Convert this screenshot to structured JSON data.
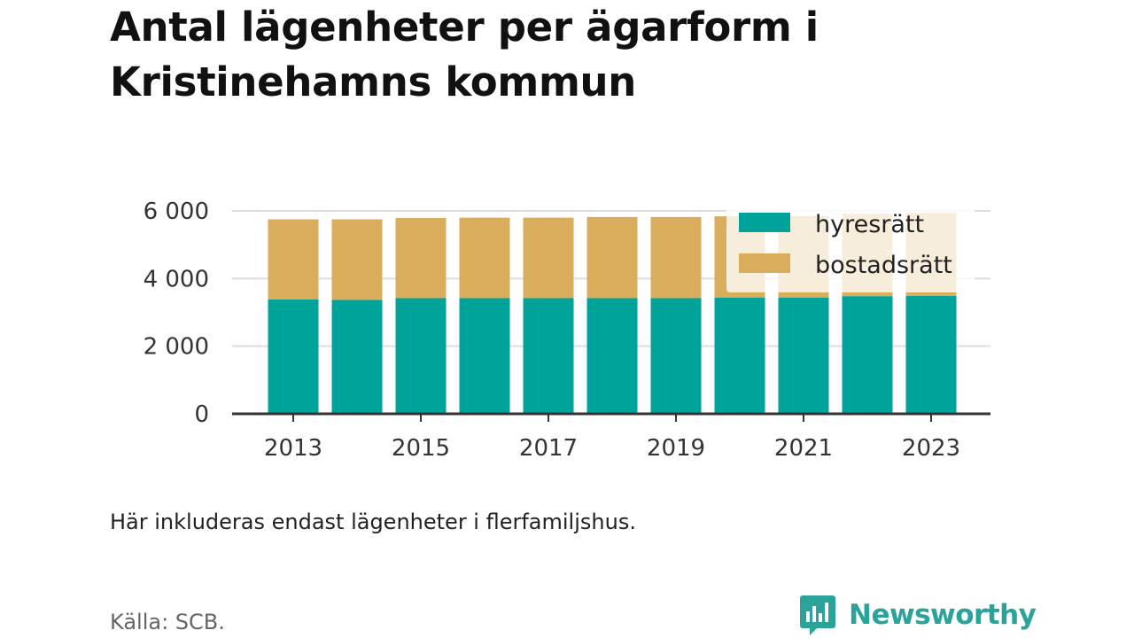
{
  "title": "Antal lägenheter per ägarform i Kristinehamns kommun",
  "note": "Här inkluderas endast lägenheter i flerfamiljshus.",
  "source": "Källa: SCB.",
  "brand": {
    "name": "Newsworthy",
    "icon": "newsworthy-logo-icon",
    "color": "#2aa39a"
  },
  "colors": {
    "hyresratt": "#00a39a",
    "bostadsratt": "#d9ad5b",
    "grid": "#dddddd",
    "axis": "#333333"
  },
  "chart_data": {
    "type": "bar",
    "stacked": true,
    "x": [
      2013,
      2014,
      2015,
      2016,
      2017,
      2018,
      2019,
      2020,
      2021,
      2022,
      2023
    ],
    "x_tick_labels": [
      "2013",
      "2015",
      "2017",
      "2019",
      "2021",
      "2023"
    ],
    "y_ticks": [
      0,
      2000,
      4000,
      6000
    ],
    "y_tick_labels": [
      "0",
      "2 000",
      "4 000",
      "6 000"
    ],
    "ylim": [
      0,
      6000
    ],
    "grid": true,
    "legend_position": "top-right",
    "series": [
      {
        "name": "hyresrätt",
        "color": "#00a39a",
        "values": [
          3380,
          3370,
          3420,
          3420,
          3420,
          3420,
          3420,
          3440,
          3440,
          3480,
          3490
        ]
      },
      {
        "name": "bostadsrätt",
        "color": "#d9ad5b",
        "values": [
          2370,
          2380,
          2370,
          2380,
          2380,
          2400,
          2400,
          2400,
          2410,
          2430,
          2450
        ]
      }
    ]
  }
}
